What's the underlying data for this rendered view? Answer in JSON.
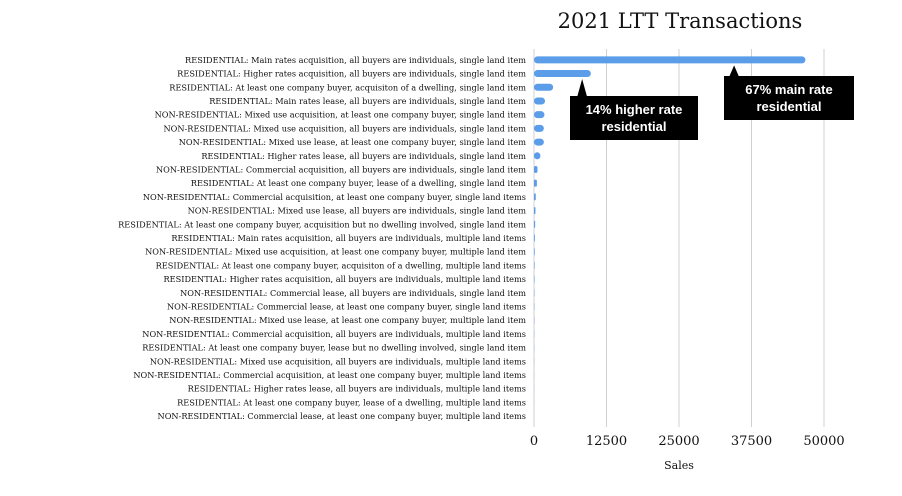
{
  "chart_data": {
    "type": "bar",
    "orientation": "horizontal",
    "title": "2021 LTT Transactions",
    "xlabel": "Sales",
    "ylabel": "",
    "xlim": [
      0,
      50000
    ],
    "xticks": [
      "0",
      "12500",
      "25000",
      "37500",
      "50000"
    ],
    "grid": "vertical",
    "legend": "none",
    "bar_color": "#5b9de8",
    "categories": [
      "RESIDENTIAL: Main rates acquisition, all buyers are individuals, single land item",
      "RESIDENTIAL: Higher rates acquisition, all buyers are individuals, single land item",
      "RESIDENTIAL: At least one company buyer, acquisiton of a dwelling, single land item",
      "RESIDENTIAL: Main rates lease, all buyers are individuals, single land item",
      "NON-RESIDENTIAL: Mixed use acquisition, at least one company buyer, single land item",
      "NON-RESIDENTIAL: Mixed use acquisition, all buyers are individuals, single land item",
      "NON-RESIDENTIAL: Mixed use lease, at least one company buyer, single land item",
      "RESIDENTIAL: Higher rates lease, all buyers are individuals, single land item",
      "NON-RESIDENTIAL: Commercial acquisition, all buyers are individuals, single land item",
      "RESIDENTIAL: At least one company buyer, lease of a dwelling, single land item",
      "NON-RESIDENTIAL: Commercial acquisition, at least one company buyer, single land items",
      "NON-RESIDENTIAL: Mixed use lease, all buyers are individuals, single land item",
      "RESIDENTIAL: At least one company buyer, acquisition but no dwelling involved, single land item",
      "RESIDENTIAL: Main rates acquisition, all buyers are individuals, multiple land items",
      "NON-RESIDENTIAL: Mixed use acquisition, at least one company buyer, multiple land item",
      "RESIDENTIAL: At least one company buyer, acquisiton of a dwelling, multiple land items",
      "RESIDENTIAL: Higher rates acquisition, all buyers are individuals, multiple land items",
      "NON-RESIDENTIAL: Commercial lease, all buyers are individuals, single land item",
      "NON-RESIDENTIAL: Commercial lease, at least one company buyer, single land items",
      "NON-RESIDENTIAL: Mixed use lease, at least one company buyer, multiple land item",
      "NON-RESIDENTIAL: Commercial acquisition, all buyers are individuals, multiple land items",
      "RESIDENTIAL: At least one company buyer, lease but no dwelling involved, single land item",
      "NON-RESIDENTIAL: Mixed use acquisition, all buyers are individuals, multiple land items",
      "NON-RESIDENTIAL: Commercial acquisition, at least one company buyer, multiple land items",
      "RESIDENTIAL: Higher rates lease, all buyers are individuals, multiple land items",
      "RESIDENTIAL: At least one company buyer, lease of a dwelling, multiple land items",
      "NON-RESIDENTIAL: Commercial lease, at least one company buyer, multiple land items"
    ],
    "values": [
      46800,
      9800,
      3300,
      1900,
      1800,
      1700,
      1700,
      1100,
      600,
      500,
      300,
      250,
      200,
      150,
      120,
      100,
      90,
      70,
      60,
      50,
      40,
      30,
      25,
      20,
      15,
      10,
      5
    ],
    "annotations": [
      {
        "text": [
          "14% higher rate",
          "residential"
        ],
        "target_index": 1,
        "target_value": 8300
      },
      {
        "text": [
          "67% main rate",
          "residential"
        ],
        "target_index": 0,
        "target_value": 34500
      }
    ]
  }
}
